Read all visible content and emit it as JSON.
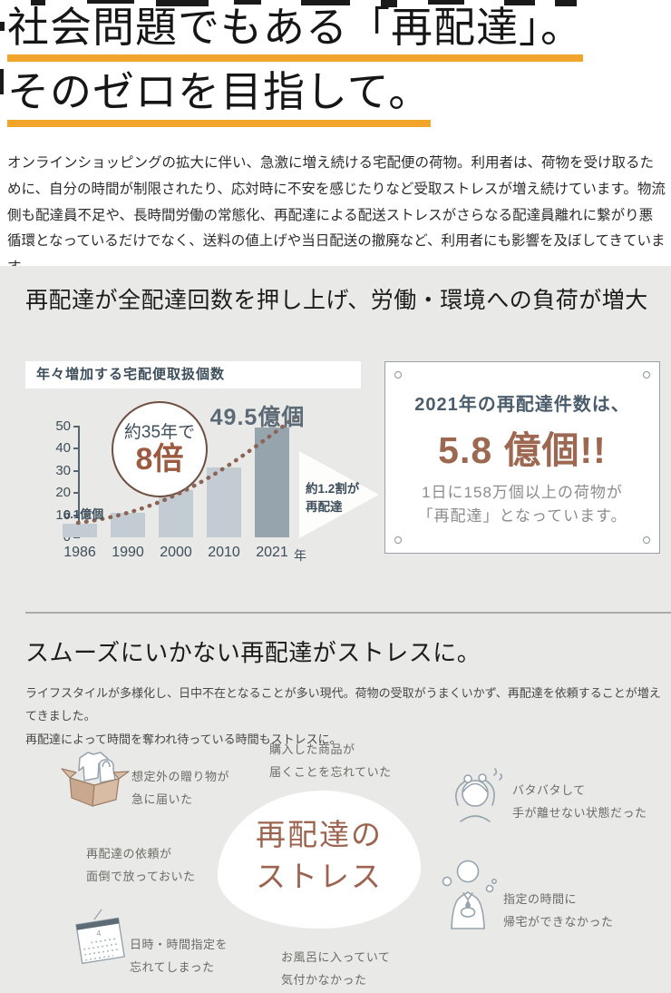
{
  "header": {
    "title_line1": "社会問題でもある「再配達」。",
    "title_line2": "そのゼロを目指して。"
  },
  "intro": {
    "text": "オンラインショッピングの拡大に伴い、急激に増え続ける宅配便の荷物。利用者は、荷物を受け取るために、自分の時間が制限されたり、応対時に不安を感じたりなど受取ストレスが増え続けています。物流側も配達員不足や、長時間労働の常態化、再配達による配送ストレスがさらなる配達員離れに繋がり悪循環となっているだけでなく、送料の値上げや当日配送の撤廃など、利用者にも影響を及ぼしてきています。"
  },
  "section_load": {
    "heading": "再配達が全配達回数を押し上げ、労働・環境への負荷が増大"
  },
  "chart_data": {
    "type": "bar",
    "title": "年々増加する宅配便取扱個数",
    "categories": [
      "1986",
      "1990",
      "2000",
      "2010",
      "2021"
    ],
    "values": [
      6.1,
      11,
      21.5,
      31.5,
      49.5
    ],
    "x_unit": "年",
    "ylim": [
      0,
      50
    ],
    "yticks": [
      0,
      10,
      20,
      30,
      40,
      50
    ],
    "grid": false,
    "legend": "none",
    "bar_color": "#c3ccd3",
    "highlight_index": 4,
    "highlight_color": "#96a4ad",
    "trend_line": "dotted ascending curve",
    "trend_color": "#8b6354",
    "annotations": {
      "first_bar_label": "6.1億個",
      "last_bar_label": "49.5億個",
      "badge_line1": "約35年で",
      "badge_line2": "8倍",
      "arrow_line1": "約1.2割が",
      "arrow_line2": "再配達"
    }
  },
  "card": {
    "line1": "2021年の再配達件数は、",
    "big_number": "5.8 億個!!",
    "body_line1": "1日に158万個以上の荷物が",
    "body_line2": "「再配達」となっています。"
  },
  "section_stress": {
    "heading": "スムーズにいかない再配達がストレスに。",
    "body_line1": "ライフスタイルが多様化し、日中不在となることが多い現代。荷物の受取がうまくいかず、再配達を依頼することが増えてきました。",
    "body_line2": "再配達によって時間を奪われ待っている時間もストレスに。",
    "center_line1": "再配達の",
    "center_line2": "ストレス",
    "items": [
      [
        "想定外の贈り物が",
        "急に届いた"
      ],
      [
        "購入した商品が",
        "届くことを忘れていた"
      ],
      [
        "再配達の依頼が",
        "面倒で放っておいた"
      ],
      [
        "日時・時間指定を",
        "忘れてしまった"
      ],
      [
        "お風呂に入っていて",
        "気付かなかった"
      ],
      [
        "バタバタして",
        "手が離せない状態だった"
      ],
      [
        "指定の時間に",
        "帰宅ができなかった"
      ]
    ]
  },
  "colors": {
    "accent_underline": "#f1a52a",
    "brown_accent": "#9c6450",
    "slate_text": "#3e4e5a",
    "section_bg": "#e9e9e7"
  }
}
